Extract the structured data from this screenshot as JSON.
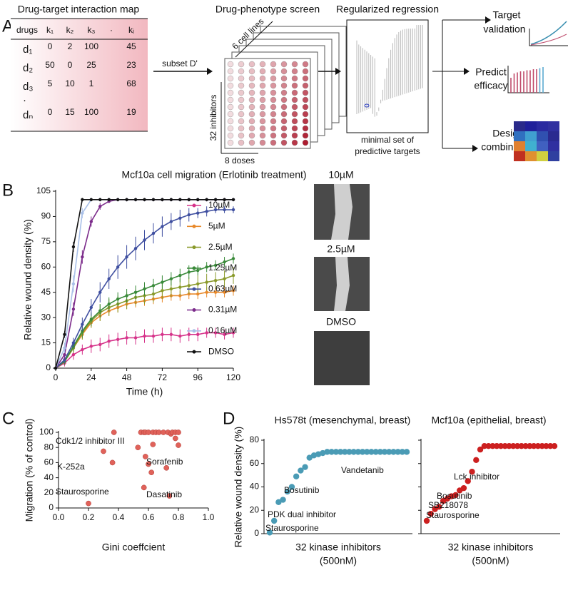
{
  "panels": [
    "A",
    "B",
    "C",
    "D"
  ],
  "panel_a": {
    "map_title": "Drug-target interaction map",
    "table": {
      "headers": [
        "drugs",
        "k₁",
        "k₂",
        "k₃",
        "·",
        "kᵢ"
      ],
      "rows": [
        [
          "d₁",
          0,
          2,
          100,
          45
        ],
        [
          "d₂",
          50,
          0,
          25,
          23
        ],
        [
          "d₃",
          5,
          10,
          1,
          68
        ],
        [
          "·"
        ],
        [
          "dₙ",
          0,
          15,
          100,
          19
        ]
      ]
    },
    "subset_label": "subset D'",
    "screen_title": "Drug-phenotype screen",
    "screen_axes": [
      "6 cell lines",
      "32 inhibitors",
      "8 doses"
    ],
    "regression_title": "Regularized regression",
    "regression_caption": [
      "minimal set of",
      "predictive targets"
    ],
    "outputs": [
      [
        "Target",
        "validation"
      ],
      [
        "Predict",
        "efficacy"
      ],
      [
        "Design",
        "combination"
      ]
    ]
  },
  "images_b": [
    "10µM",
    "2.5µM",
    "DMSO"
  ],
  "chart_data": [
    {
      "type": "line",
      "title": "Mcf10a cell migration (Erlotinib treatment)",
      "xlabel": "Time (h)",
      "ylabel": "Relative wound density (%)",
      "x": [
        0,
        6,
        12,
        18,
        24,
        30,
        36,
        42,
        48,
        54,
        60,
        66,
        72,
        78,
        84,
        90,
        96,
        102,
        108,
        114,
        120
      ],
      "xlim": [
        0,
        120
      ],
      "xticks": [
        0,
        24,
        48,
        72,
        96,
        120
      ],
      "ylim": [
        0,
        105
      ],
      "yticks": [
        0,
        15,
        30,
        45,
        60,
        75,
        90,
        105
      ],
      "series": [
        {
          "name": "10µM",
          "color": "#d6338a",
          "values": [
            0,
            3,
            8,
            11,
            13,
            14,
            16,
            17,
            18,
            18,
            19,
            19,
            20,
            20,
            19,
            20,
            20,
            21,
            21,
            20,
            21
          ],
          "errors": [
            0,
            2,
            3,
            3,
            4,
            4,
            4,
            4,
            4,
            4,
            4,
            4,
            4,
            4,
            4,
            4,
            4,
            3,
            3,
            3,
            3
          ]
        },
        {
          "name": "5µM",
          "color": "#e8892b",
          "values": [
            0,
            4,
            12,
            20,
            27,
            31,
            34,
            36,
            38,
            39,
            40,
            41,
            42,
            43,
            43,
            44,
            44,
            45,
            45,
            45,
            46
          ],
          "errors": [
            0,
            1,
            2,
            3,
            3,
            3,
            3,
            3,
            3,
            3,
            3,
            3,
            3,
            3,
            3,
            3,
            3,
            3,
            3,
            3,
            3
          ]
        },
        {
          "name": "2.5µM",
          "color": "#8a9a2b",
          "values": [
            0,
            4,
            12,
            21,
            28,
            33,
            36,
            38,
            40,
            42,
            43,
            44,
            46,
            47,
            48,
            49,
            50,
            51,
            52,
            53,
            55
          ],
          "errors": [
            0,
            2,
            3,
            4,
            4,
            5,
            5,
            5,
            5,
            5,
            5,
            5,
            5,
            5,
            5,
            5,
            5,
            5,
            5,
            5,
            5
          ]
        },
        {
          "name": "1.25µM",
          "color": "#3a8a3a",
          "values": [
            0,
            4,
            13,
            22,
            29,
            34,
            38,
            41,
            43,
            45,
            47,
            49,
            51,
            53,
            55,
            57,
            58,
            60,
            61,
            63,
            65
          ],
          "errors": [
            0,
            2,
            3,
            4,
            4,
            4,
            4,
            4,
            4,
            4,
            4,
            4,
            4,
            4,
            4,
            4,
            3,
            3,
            3,
            3,
            3
          ]
        },
        {
          "name": "0.63µM",
          "color": "#3f4fa0",
          "values": [
            0,
            5,
            15,
            26,
            36,
            45,
            53,
            60,
            66,
            71,
            76,
            80,
            84,
            87,
            89,
            91,
            92,
            93,
            94,
            94,
            94
          ],
          "errors": [
            0,
            2,
            3,
            4,
            5,
            6,
            6,
            7,
            7,
            7,
            6,
            6,
            6,
            5,
            5,
            4,
            3,
            3,
            2,
            2,
            2
          ]
        },
        {
          "name": "0.31µM",
          "color": "#7b2a8a",
          "values": [
            0,
            8,
            35,
            66,
            87,
            96,
            99,
            100,
            100,
            100,
            100,
            100,
            100,
            100,
            100,
            100,
            100,
            100,
            100,
            100,
            100
          ],
          "errors": [
            0,
            3,
            4,
            4,
            3,
            2,
            1,
            1,
            1,
            1,
            1,
            1,
            1,
            1,
            1,
            1,
            1,
            1,
            1,
            1,
            1
          ]
        },
        {
          "name": "0.16µM",
          "color": "#a9c0e8",
          "values": [
            0,
            12,
            50,
            92,
            100,
            100,
            100,
            100,
            100,
            100,
            100,
            100,
            100,
            100,
            100,
            100,
            100,
            100,
            100,
            100,
            100
          ],
          "errors": [
            0,
            3,
            5,
            3,
            1,
            1,
            1,
            1,
            1,
            1,
            1,
            1,
            1,
            1,
            1,
            1,
            1,
            1,
            1,
            1,
            1
          ]
        },
        {
          "name": "DMSO",
          "color": "#111111",
          "values": [
            0,
            20,
            72,
            100,
            100,
            100,
            100,
            100,
            100,
            100,
            100,
            100,
            100,
            100,
            100,
            100,
            100,
            100,
            100,
            100,
            100
          ],
          "errors": [
            0,
            2,
            3,
            1,
            1,
            1,
            1,
            1,
            1,
            1,
            1,
            1,
            1,
            1,
            1,
            1,
            1,
            1,
            1,
            1,
            1
          ]
        }
      ]
    },
    {
      "type": "scatter",
      "xlabel": "Gini coeffcient",
      "ylabel": "Migration (% of control)",
      "color": "#e0625a",
      "x": [
        0.2,
        0.3,
        0.36,
        0.37,
        0.53,
        0.55,
        0.57,
        0.57,
        0.58,
        0.58,
        0.6,
        0.6,
        0.62,
        0.63,
        0.63,
        0.65,
        0.67,
        0.7,
        0.72,
        0.73,
        0.74,
        0.75,
        0.76,
        0.78,
        0.78,
        0.8,
        0.8
      ],
      "values": [
        6,
        75,
        60,
        100,
        80,
        100,
        27,
        100,
        68,
        100,
        100,
        58,
        47,
        84,
        100,
        100,
        100,
        100,
        53,
        100,
        16,
        98,
        100,
        100,
        92,
        83,
        100
      ],
      "xlim": [
        0,
        1
      ],
      "xticks": [
        {
          "value": 0,
          "label": "0.0"
        },
        {
          "value": 0.2,
          "label": "0.2"
        },
        {
          "value": 0.4,
          "label": "0.4"
        },
        {
          "value": 0.6,
          "label": "0.6"
        },
        {
          "value": 0.8,
          "label": "0.8"
        },
        {
          "value": 1,
          "label": "1.0"
        }
      ],
      "ylim": [
        0,
        100
      ],
      "yticks": [
        0,
        20,
        40,
        60,
        80,
        100
      ],
      "annotations": [
        "Cdk1/2 inhibitor III",
        "K-252a",
        "Sorafenib",
        "Dasatinib",
        "Staurosporine"
      ]
    },
    {
      "type": "scatter",
      "title": "Hs578t (mesenchymal, breast)",
      "xlabel": [
        "32 kinase inhibitors",
        "(500nM)"
      ],
      "ylabel": "Relative wound density (%)",
      "color": "#4a9bb5",
      "values": [
        1,
        11,
        27,
        29,
        36,
        40,
        49,
        54,
        57,
        65,
        67,
        68,
        69,
        70,
        70,
        70,
        70,
        70,
        70,
        70,
        70,
        70,
        70,
        70,
        70,
        70,
        70,
        70,
        70,
        70,
        70,
        70
      ],
      "ylim": [
        0,
        80
      ],
      "yticks": [
        0,
        20,
        40,
        60,
        80
      ],
      "ytick_labels": true,
      "annotations": [
        "Vandetanib",
        "Bosutinib",
        "PDK dual inhibitor",
        "Staurosporine"
      ]
    },
    {
      "type": "scatter",
      "title": "Mcf10a (epithelial, breast)",
      "xlabel": [
        "32 kinase inhibitors",
        "(500nM)"
      ],
      "color": "#cc1f1f",
      "values": [
        11,
        17,
        21,
        23,
        28,
        30,
        32,
        33,
        37,
        39,
        45,
        53,
        63,
        72,
        75,
        75,
        75,
        75,
        75,
        75,
        75,
        75,
        75,
        75,
        75,
        75,
        75,
        75,
        75,
        75,
        75,
        75
      ],
      "ylim": [
        0,
        80
      ],
      "yticks": [
        0,
        20,
        40,
        60,
        80
      ],
      "ytick_labels": false,
      "annotations": [
        "Lck inhibitor",
        "Bosutinib",
        "SB218078",
        "Staurosporine"
      ]
    }
  ]
}
